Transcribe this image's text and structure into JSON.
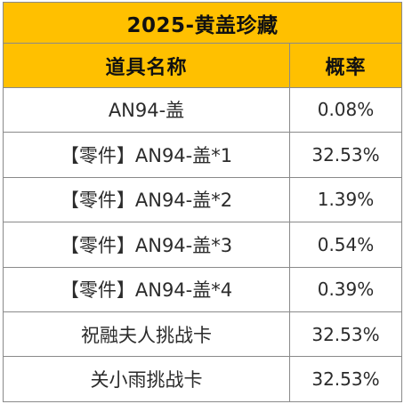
{
  "table": {
    "title": "2025-黄盖珍藏",
    "headers": {
      "name": "道具名称",
      "rate": "概率"
    },
    "rows": [
      {
        "name": "AN94-盖",
        "rate": "0.08%"
      },
      {
        "name": "【零件】AN94-盖*1",
        "rate": "32.53%"
      },
      {
        "name": "【零件】AN94-盖*2",
        "rate": "1.39%"
      },
      {
        "name": "【零件】AN94-盖*3",
        "rate": "0.54%"
      },
      {
        "name": "【零件】AN94-盖*4",
        "rate": "0.39%"
      },
      {
        "name": "祝融夫人挑战卡",
        "rate": "32.53%"
      },
      {
        "name": "关小雨挑战卡",
        "rate": "32.53%"
      }
    ]
  },
  "colors": {
    "header_fill": "#ffc000",
    "border": "#8a8a8a",
    "text": "#2b2b2b"
  }
}
